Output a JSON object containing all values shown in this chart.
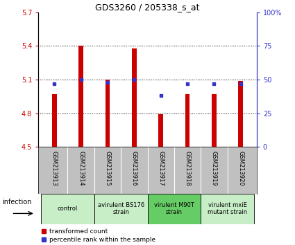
{
  "title": "GDS3260 / 205338_s_at",
  "samples": [
    "GSM213913",
    "GSM213914",
    "GSM213915",
    "GSM213916",
    "GSM213917",
    "GSM213918",
    "GSM213919",
    "GSM213920"
  ],
  "red_values": [
    4.97,
    5.4,
    5.1,
    5.38,
    4.79,
    4.97,
    4.97,
    5.09
  ],
  "blue_values": [
    47,
    50,
    48,
    50,
    38,
    47,
    47,
    47
  ],
  "baseline": 4.5,
  "ylim_left": [
    4.5,
    5.7
  ],
  "ylim_right": [
    0,
    100
  ],
  "yticks_left": [
    4.5,
    4.8,
    5.1,
    5.4,
    5.7
  ],
  "yticks_right": [
    0,
    25,
    50,
    75,
    100
  ],
  "red_color": "#cc0000",
  "blue_color": "#3333cc",
  "bar_width": 0.18,
  "groups": [
    {
      "label": "control",
      "samples": [
        0,
        1
      ],
      "color": "#c8eec8"
    },
    {
      "label": "avirulent BS176\nstrain",
      "samples": [
        2,
        3
      ],
      "color": "#c8eec8"
    },
    {
      "label": "virulent M90T\nstrain",
      "samples": [
        4,
        5
      ],
      "color": "#66cc66"
    },
    {
      "label": "virulent mxiE\nmutant strain",
      "samples": [
        6,
        7
      ],
      "color": "#c8eec8"
    }
  ],
  "infection_label": "infection",
  "legend_red": "transformed count",
  "legend_blue": "percentile rank within the sample",
  "plot_bg": "#ffffff",
  "sample_area_bg": "#c0c0c0"
}
